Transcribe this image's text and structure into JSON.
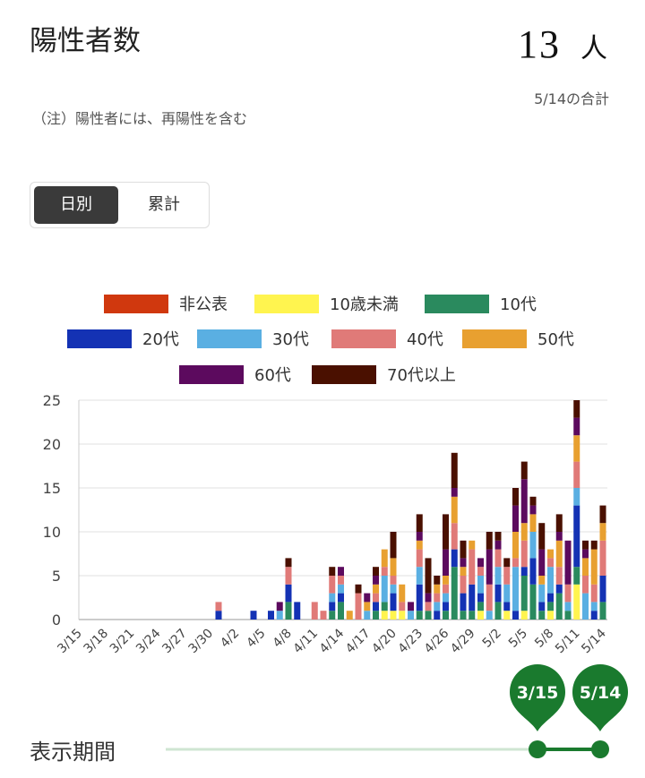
{
  "header": {
    "title": "陽性者数",
    "total_value": "13",
    "total_unit": "人",
    "total_caption": "5/14の合計",
    "note": "（注）陽性者には、再陽性を含む"
  },
  "toggle": {
    "daily_label": "日別",
    "cumulative_label": "累計",
    "selected": "日別"
  },
  "slider": {
    "label": "表示期間",
    "start": "3/15",
    "end": "5/14",
    "accent_color": "#1a7a2e"
  },
  "chart_data": {
    "type": "bar",
    "stacked": true,
    "legend_position": "top",
    "grid": true,
    "ylim": [
      0,
      25
    ],
    "yticks": [
      0,
      5,
      10,
      15,
      20,
      25
    ],
    "xtick_every": 3,
    "categories": [
      "3/15",
      "3/16",
      "3/17",
      "3/18",
      "3/19",
      "3/20",
      "3/21",
      "3/22",
      "3/23",
      "3/24",
      "3/25",
      "3/26",
      "3/27",
      "3/28",
      "3/29",
      "3/30",
      "3/31",
      "4/1",
      "4/2",
      "4/3",
      "4/4",
      "4/5",
      "4/6",
      "4/7",
      "4/8",
      "4/9",
      "4/10",
      "4/11",
      "4/12",
      "4/13",
      "4/14",
      "4/15",
      "4/16",
      "4/17",
      "4/18",
      "4/19",
      "4/20",
      "4/21",
      "4/22",
      "4/23",
      "4/24",
      "4/25",
      "4/26",
      "4/27",
      "4/28",
      "4/29",
      "4/30",
      "5/1",
      "5/2",
      "5/3",
      "5/4",
      "5/5",
      "5/6",
      "5/7",
      "5/8",
      "5/9",
      "5/10",
      "5/11",
      "5/12",
      "5/13",
      "5/14"
    ],
    "series": [
      {
        "name": "非公表",
        "color": "#d0380e",
        "values": [
          0,
          0,
          0,
          0,
          0,
          0,
          0,
          0,
          0,
          0,
          0,
          0,
          0,
          0,
          0,
          0,
          0,
          0,
          0,
          0,
          0,
          0,
          0,
          0,
          0,
          0,
          0,
          0,
          0,
          0,
          0,
          0,
          0,
          0,
          0,
          0,
          0,
          0,
          0,
          0,
          0,
          0,
          0,
          0,
          0,
          0,
          0,
          0,
          0,
          0,
          0,
          0,
          0,
          0,
          0,
          0,
          0,
          0,
          0,
          0,
          0
        ]
      },
      {
        "name": "10歳未満",
        "color": "#fff44f",
        "values": [
          0,
          0,
          0,
          0,
          0,
          0,
          0,
          0,
          0,
          0,
          0,
          0,
          0,
          0,
          0,
          0,
          0,
          0,
          0,
          0,
          0,
          0,
          0,
          0,
          0,
          0,
          0,
          0,
          0,
          0,
          0,
          0,
          0,
          0,
          0,
          1,
          1,
          1,
          0,
          0,
          0,
          0,
          0,
          0,
          0,
          0,
          1,
          0,
          0,
          1,
          0,
          1,
          0,
          0,
          1,
          0,
          0,
          4,
          0,
          0,
          0
        ]
      },
      {
        "name": "10代",
        "color": "#2a8a5e",
        "values": [
          0,
          0,
          0,
          0,
          0,
          0,
          0,
          0,
          0,
          0,
          0,
          0,
          0,
          0,
          0,
          0,
          0,
          0,
          0,
          0,
          0,
          0,
          0,
          0,
          2,
          0,
          0,
          0,
          0,
          1,
          2,
          0,
          0,
          0,
          1,
          1,
          0,
          0,
          0,
          1,
          1,
          0,
          1,
          6,
          1,
          1,
          1,
          0,
          2,
          0,
          0,
          4,
          4,
          1,
          1,
          3,
          1,
          2,
          0,
          0,
          2
        ]
      },
      {
        "name": "20代",
        "color": "#1432b4",
        "values": [
          0,
          0,
          0,
          0,
          0,
          0,
          0,
          0,
          0,
          0,
          0,
          0,
          0,
          0,
          0,
          0,
          1,
          0,
          0,
          0,
          1,
          0,
          1,
          0,
          2,
          2,
          0,
          0,
          0,
          1,
          1,
          0,
          0,
          0,
          1,
          0,
          2,
          0,
          0,
          3,
          0,
          1,
          1,
          2,
          2,
          3,
          1,
          0,
          2,
          1,
          1,
          1,
          3,
          1,
          1,
          1,
          0,
          7,
          0,
          1,
          3
        ]
      },
      {
        "name": "30代",
        "color": "#5aafe2",
        "values": [
          0,
          0,
          0,
          0,
          0,
          0,
          0,
          0,
          0,
          0,
          0,
          0,
          0,
          0,
          0,
          0,
          0,
          0,
          0,
          0,
          0,
          0,
          0,
          1,
          0,
          0,
          0,
          0,
          0,
          1,
          1,
          0,
          0,
          1,
          0,
          3,
          1,
          0,
          1,
          2,
          0,
          1,
          1,
          0,
          0,
          0,
          2,
          1,
          2,
          2,
          5,
          0,
          3,
          2,
          3,
          0,
          1,
          2,
          3,
          1,
          0
        ]
      },
      {
        "name": "40代",
        "color": "#e07a78",
        "values": [
          0,
          0,
          0,
          0,
          0,
          0,
          0,
          0,
          0,
          0,
          0,
          0,
          0,
          0,
          0,
          0,
          1,
          0,
          0,
          0,
          0,
          0,
          0,
          0,
          2,
          0,
          0,
          2,
          1,
          2,
          1,
          0,
          3,
          0,
          1,
          1,
          1,
          1,
          0,
          2,
          1,
          1,
          1,
          3,
          2,
          4,
          1,
          3,
          2,
          2,
          1,
          3,
          0,
          0,
          1,
          2,
          2,
          3,
          2,
          2,
          4
        ]
      },
      {
        "name": "50代",
        "color": "#e8a030",
        "values": [
          0,
          0,
          0,
          0,
          0,
          0,
          0,
          0,
          0,
          0,
          0,
          0,
          0,
          0,
          0,
          0,
          0,
          0,
          0,
          0,
          0,
          0,
          0,
          0,
          0,
          0,
          0,
          0,
          0,
          0,
          0,
          1,
          0,
          1,
          1,
          2,
          2,
          2,
          0,
          1,
          0,
          1,
          1,
          3,
          1,
          1,
          0,
          0,
          0,
          0,
          3,
          2,
          2,
          1,
          1,
          3,
          0,
          3,
          2,
          4,
          2
        ]
      },
      {
        "name": "60代",
        "color": "#5c0a5e",
        "values": [
          0,
          0,
          0,
          0,
          0,
          0,
          0,
          0,
          0,
          0,
          0,
          0,
          0,
          0,
          0,
          0,
          0,
          0,
          0,
          0,
          0,
          0,
          0,
          1,
          0,
          0,
          0,
          0,
          0,
          0,
          1,
          0,
          0,
          1,
          1,
          0,
          0,
          0,
          1,
          1,
          1,
          0,
          3,
          1,
          1,
          0,
          1,
          4,
          1,
          0,
          3,
          5,
          1,
          3,
          0,
          1,
          5,
          2,
          1,
          0,
          0
        ]
      },
      {
        "name": "70代以上",
        "color": "#4a1000",
        "values": [
          0,
          0,
          0,
          0,
          0,
          0,
          0,
          0,
          0,
          0,
          0,
          0,
          0,
          0,
          0,
          0,
          0,
          0,
          0,
          0,
          0,
          0,
          0,
          0,
          1,
          0,
          0,
          0,
          0,
          1,
          0,
          0,
          1,
          0,
          1,
          0,
          3,
          0,
          0,
          2,
          4,
          1,
          4,
          4,
          2,
          0,
          0,
          2,
          1,
          1,
          2,
          2,
          1,
          3,
          0,
          2,
          0,
          2,
          1,
          1,
          2
        ]
      }
    ]
  }
}
